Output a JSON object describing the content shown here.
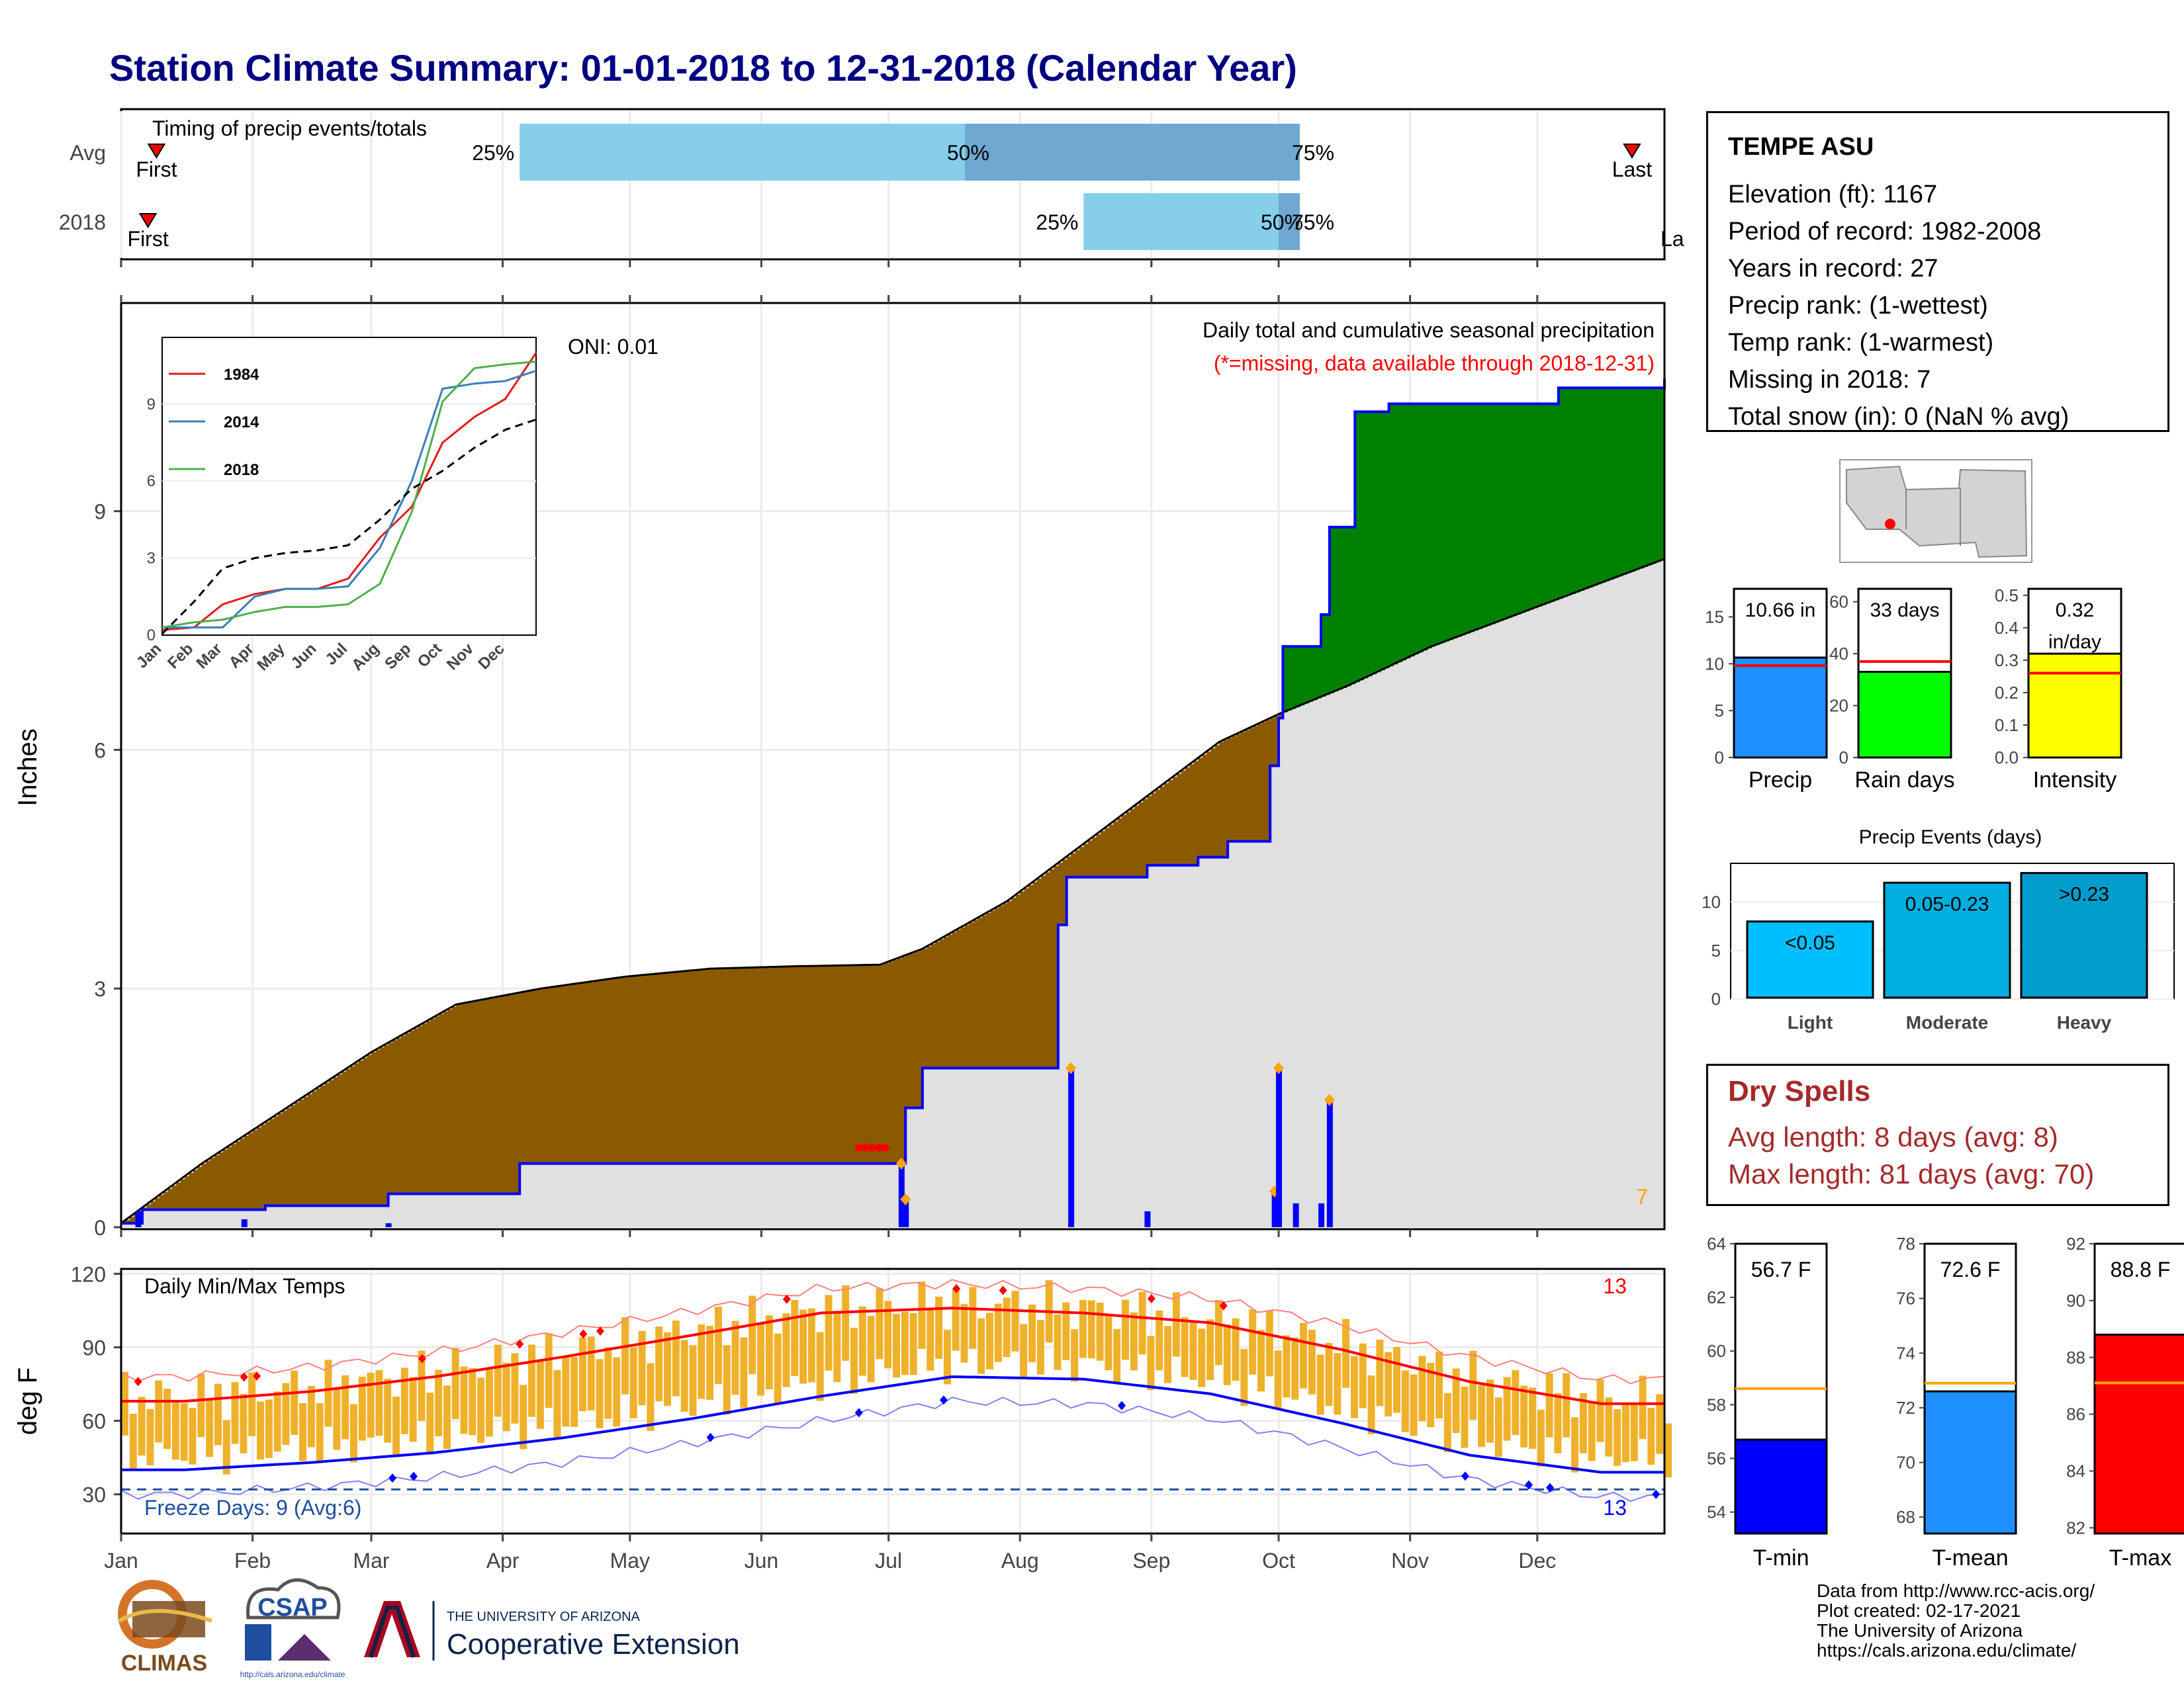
{
  "title": "Station Climate Summary: 01-01-2018 to 12-31-2018 (Calendar Year)",
  "colors": {
    "title": "#000080",
    "brown": "#8b5a00",
    "green": "#008000",
    "grey": "#e0e0e0",
    "blue": "#0000ff",
    "orange": "#ffa500",
    "red": "#ff0000",
    "lightblue": "#87ceeb",
    "midblue": "#6fa8d0",
    "tempbar": "#efb12b",
    "dryspell": "#a52a2a"
  },
  "timing": {
    "label": "Timing of precip events/totals",
    "rows": [
      {
        "name": "Avg",
        "first_label": "First",
        "last_label": "Last",
        "first_doy": 7,
        "last_doy": 355,
        "p25": 95,
        "p50": 200,
        "p75": 279,
        "p25_label": "25%",
        "p50_label": "50%",
        "p75_label": "75%"
      },
      {
        "name": "2018",
        "first_label": "First",
        "last_label": "La",
        "first_doy": 5,
        "last_doy": 365,
        "p25": 228,
        "p50": 274,
        "p75": 279,
        "p25_label": "25%",
        "p50_label": "50%",
        "p75_label": "75%"
      }
    ]
  },
  "precip_panel": {
    "ylabel": "Inches",
    "y_ticks": [
      "0",
      "3",
      "6",
      "9"
    ],
    "oni": "ONI: 0.01",
    "legend1": "Daily total and cumulative seasonal precipitation",
    "legend2": "(*=missing, data available through 2018-12-31)",
    "missing_count": "7"
  },
  "inset": {
    "y_ticks": [
      "0",
      "3",
      "6",
      "9"
    ],
    "x_ticks": [
      "Jan",
      "Feb",
      "Mar",
      "Apr",
      "May",
      "Jun",
      "Jul",
      "Aug",
      "Sep",
      "Oct",
      "Nov",
      "Dec"
    ],
    "legend": [
      {
        "name": "1984",
        "color": "#e41a1c"
      },
      {
        "name": "2014",
        "color": "#377eb8"
      },
      {
        "name": "2018",
        "color": "#4daf4a"
      }
    ]
  },
  "temp_panel": {
    "ylabel": "deg F",
    "y_ticks": [
      "30",
      "60",
      "90",
      "120"
    ],
    "title": "Daily Min/Max Temps",
    "top_count": "13",
    "bottom_count": "13",
    "freeze_label": "Freeze Days: 9 (Avg:6)"
  },
  "months": [
    "Jan",
    "Feb",
    "Mar",
    "Apr",
    "May",
    "Jun",
    "Jul",
    "Aug",
    "Sep",
    "Oct",
    "Nov",
    "Dec"
  ],
  "station": {
    "name": "TEMPE ASU",
    "lines": [
      "Elevation (ft): 1167",
      "Period of record: 1982-2008",
      "Years in record: 27",
      "Precip rank:  (1-wettest)",
      "Temp rank:  (1-warmest)",
      "Missing in 2018: 7",
      "Total snow (in): 0 (NaN % avg)"
    ]
  },
  "summary_bars": [
    {
      "label": "Precip",
      "value_label": "10.66 in",
      "value": 10.66,
      "avg": 9.8,
      "ymax": 18,
      "ticks": [
        "0",
        "5",
        "10",
        "15"
      ],
      "tick_vals": [
        0,
        5,
        10,
        15
      ],
      "color": "#1e90ff"
    },
    {
      "label": "Rain days",
      "value_label": "33 days",
      "value": 33,
      "avg": 37,
      "ymax": 65,
      "ticks": [
        "0",
        "20",
        "40",
        "60"
      ],
      "tick_vals": [
        0,
        20,
        40,
        60
      ],
      "color": "#00ff00"
    },
    {
      "label": "Intensity",
      "value_label": "0.32 in/day",
      "value": 0.32,
      "avg": 0.26,
      "ymax": 0.52,
      "ticks": [
        "0.0",
        "0.1",
        "0.2",
        "0.3",
        "0.4",
        "0.5"
      ],
      "tick_vals": [
        0,
        0.1,
        0.2,
        0.3,
        0.4,
        0.5
      ],
      "color": "#ffff00"
    }
  ],
  "precip_events": {
    "title": "Precip Events (days)",
    "ticks": [
      "0",
      "5",
      "10"
    ],
    "bars": [
      {
        "label": "Light",
        "value_label": "<0.05",
        "value": 8,
        "color": "#00bfff"
      },
      {
        "label": "Moderate",
        "value_label": "0.05-0.23",
        "value": 12,
        "color": "#00aee0"
      },
      {
        "label": "Heavy",
        "value_label": ">0.23",
        "value": 13,
        "color": "#009ccc"
      }
    ]
  },
  "dry_spells": {
    "title": "Dry Spells",
    "avg_length": "Avg length: 8 days (avg: 8)",
    "max_length": "Max length: 81 days (avg: 70)"
  },
  "temp_bars": [
    {
      "label": "T-min",
      "value_label": "56.7 F",
      "value": 56.7,
      "avg": 58.6,
      "ymin": 53.2,
      "ymax": 64,
      "ticks": [
        "54",
        "56",
        "58",
        "60",
        "62",
        "64"
      ],
      "tick_vals": [
        54,
        56,
        58,
        60,
        62,
        64
      ],
      "color": "#0000ff"
    },
    {
      "label": "T-mean",
      "value_label": "72.6 F",
      "value": 72.6,
      "avg": 72.9,
      "ymin": 67.4,
      "ymax": 78,
      "ticks": [
        "68",
        "70",
        "72",
        "74",
        "76",
        "78"
      ],
      "tick_vals": [
        68,
        70,
        72,
        74,
        76,
        78
      ],
      "color": "#1e90ff"
    },
    {
      "label": "T-max",
      "value_label": "88.8 F",
      "value": 88.8,
      "avg": 87.1,
      "ymin": 81.8,
      "ymax": 92,
      "ticks": [
        "82",
        "84",
        "86",
        "88",
        "90",
        "92"
      ],
      "tick_vals": [
        82,
        84,
        86,
        88,
        90,
        92
      ],
      "color": "#ff0000"
    }
  ],
  "credits": [
    "Data from http://www.rcc-acis.org/",
    "Plot created: 02-17-2021",
    "The University of Arizona",
    "https://cals.arizona.edu/climate/"
  ],
  "logos": {
    "climas": "CLIMAS",
    "csap": "CSAP",
    "csap_url": "http://cals.arizona.edu/climate",
    "ua_small": "THE UNIVERSITY OF ARIZONA",
    "coopext": "Cooperative Extension"
  },
  "chart_data": [
    {
      "type": "area",
      "title": "Daily total and cumulative seasonal precipitation",
      "ylabel": "Inches",
      "ylim": [
        0,
        11.6
      ],
      "series": [
        {
          "name": "cumulative_2018_doy",
          "x": [
            1,
            5,
            6,
            30,
            35,
            64,
            90,
            95,
            185,
            186,
            190,
            215,
            222,
            224,
            243,
            250,
            255,
            262,
            272,
            274,
            275,
            284,
            286,
            292,
            300,
            320,
            340,
            362,
            365
          ],
          "values": [
            0.05,
            0.05,
            0.22,
            0.22,
            0.27,
            0.42,
            0.42,
            0.8,
            0.8,
            1.5,
            2.0,
            2.0,
            3.8,
            4.4,
            4.55,
            4.55,
            4.65,
            4.85,
            5.8,
            6.4,
            7.3,
            7.7,
            8.8,
            10.25,
            10.35,
            10.35,
            10.55,
            10.55,
            10.66
          ]
        },
        {
          "name": "cumulative_avg_doy",
          "x": [
            1,
            20,
            40,
            60,
            80,
            100,
            120,
            140,
            160,
            180,
            190,
            200,
            210,
            220,
            230,
            240,
            250,
            260,
            274,
            290,
            310,
            330,
            350,
            365
          ],
          "values": [
            0.05,
            0.8,
            1.5,
            2.2,
            2.8,
            3.0,
            3.15,
            3.25,
            3.28,
            3.3,
            3.5,
            3.8,
            4.1,
            4.5,
            4.9,
            5.3,
            5.7,
            6.1,
            6.45,
            6.8,
            7.3,
            7.7,
            8.1,
            8.4
          ]
        },
        {
          "name": "daily_2018",
          "x": [
            5,
            30,
            64,
            185,
            186,
            225,
            243,
            273,
            274,
            278,
            284,
            286
          ],
          "values": [
            0.2,
            0.1,
            0.05,
            0.8,
            0.35,
            2.0,
            0.2,
            0.45,
            2.0,
            0.3,
            0.3,
            1.6
          ]
        }
      ]
    },
    {
      "type": "line",
      "title": "inset cumulative",
      "ylim": [
        0,
        11.6
      ],
      "x": [
        1,
        32,
        60,
        91,
        121,
        152,
        182,
        213,
        244,
        274,
        305,
        335,
        365
      ],
      "series": [
        {
          "name": "1984",
          "values": [
            0.2,
            0.3,
            1.2,
            1.6,
            1.8,
            1.8,
            2.2,
            3.8,
            5.0,
            7.5,
            8.5,
            9.2,
            11.0
          ]
        },
        {
          "name": "2014",
          "values": [
            0.3,
            0.3,
            0.3,
            1.5,
            1.8,
            1.8,
            1.9,
            3.4,
            6.0,
            9.6,
            9.8,
            9.9,
            10.3
          ]
        },
        {
          "name": "2018",
          "values": [
            0.3,
            0.5,
            0.6,
            0.9,
            1.1,
            1.1,
            1.2,
            2.0,
            4.8,
            9.1,
            10.4,
            10.55,
            10.66
          ]
        },
        {
          "name": "avg",
          "values": [
            0.05,
            1.3,
            2.6,
            3.0,
            3.2,
            3.3,
            3.5,
            4.5,
            5.7,
            6.4,
            7.3,
            8.0,
            8.4
          ]
        }
      ]
    },
    {
      "type": "bar",
      "title": "Daily Min/Max Temps",
      "ylabel": "deg F",
      "ylim": [
        14,
        122
      ],
      "x_months": [
        "Jan",
        "Feb",
        "Mar",
        "Apr",
        "May",
        "Jun",
        "Jul",
        "Aug",
        "Sep",
        "Oct",
        "Nov",
        "Dec"
      ],
      "series": [
        {
          "name": "avg_max_monthly",
          "values": [
            68,
            72,
            78,
            86,
            95,
            104,
            106,
            104,
            100,
            89,
            76,
            67
          ]
        },
        {
          "name": "avg_min_monthly",
          "values": [
            40,
            43,
            47,
            53,
            61,
            70,
            78,
            77,
            71,
            59,
            46,
            39
          ]
        },
        {
          "name": "freeze_threshold",
          "values": [
            32
          ]
        }
      ]
    },
    {
      "type": "bar",
      "title": "Precip Events (days)",
      "categories": [
        "Light",
        "Moderate",
        "Heavy"
      ],
      "values": [
        8,
        12,
        13
      ]
    }
  ]
}
